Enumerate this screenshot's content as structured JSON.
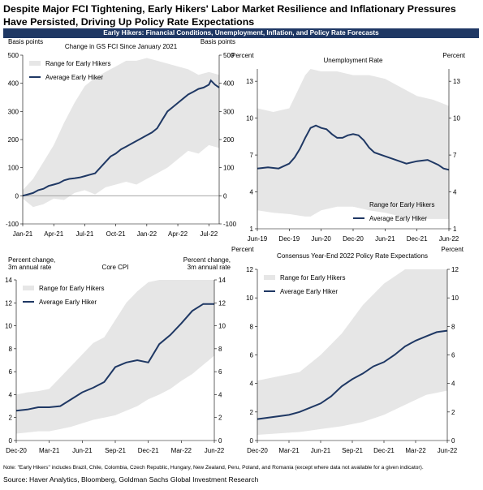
{
  "title": "Despite Major FCI Tightening, Early Hikers' Labor Market Resilience and Inflationary Pressures Have Persisted, Driving Up Policy Rate Expectations",
  "banner": "Early Hikers: Financial Conditions, Unemployment, Inflation, and Policy Rate Forecasts",
  "footnote": "Note: \"Early Hikers\" includes Brazil, Chile, Colombia, Czech Republic, Hungary, New Zealand, Peru, Poland, and Romania (except where data not available for a given indicator).",
  "source": "Source: Haver Analytics, Bloomberg, Goldman Sachs Global Investment Research",
  "colors": {
    "band": "#e6e6e6",
    "line": "#1f3864",
    "banner": "#1f3864"
  },
  "chart_data": [
    {
      "id": "fci",
      "type": "area",
      "title": "Change in GS FCI Since January 2021",
      "ylabel_left": "Basis points",
      "ylabel_right": "Basis points",
      "ylim": [
        -100,
        500
      ],
      "yticks": [
        -100,
        0,
        100,
        200,
        300,
        400,
        500
      ],
      "xticks": [
        "Jan-21",
        "Apr-21",
        "Jul-21",
        "Oct-21",
        "Jan-22",
        "Apr-22",
        "Jul-22"
      ],
      "x_start": "2021-01",
      "legend": "top-left",
      "series": [
        {
          "name": "Range for Early Hikers",
          "kind": "band",
          "x": [
            0,
            1,
            2,
            3,
            4,
            5,
            6,
            7,
            8,
            9,
            10,
            11,
            12,
            13,
            14,
            15,
            16,
            17,
            18,
            19
          ],
          "low": [
            -10,
            -40,
            -30,
            -10,
            -15,
            10,
            20,
            5,
            30,
            40,
            50,
            40,
            60,
            80,
            100,
            130,
            160,
            150,
            180,
            170
          ],
          "high": [
            20,
            60,
            120,
            180,
            260,
            330,
            390,
            420,
            440,
            460,
            480,
            480,
            490,
            480,
            470,
            460,
            450,
            430,
            440,
            430
          ]
        },
        {
          "name": "Average Early Hiker",
          "kind": "line",
          "x": [
            0,
            0.5,
            1,
            1.5,
            2,
            2.5,
            3,
            3.5,
            4,
            4.5,
            5,
            5.5,
            6,
            6.5,
            7,
            7.5,
            8,
            8.5,
            9,
            9.5,
            10,
            10.5,
            11,
            11.5,
            12,
            12.5,
            13,
            13.5,
            14,
            14.5,
            15,
            15.5,
            16,
            16.5,
            17,
            17.5,
            18,
            18.2,
            18.6,
            19
          ],
          "values": [
            0,
            5,
            10,
            20,
            25,
            35,
            40,
            45,
            55,
            60,
            62,
            65,
            70,
            75,
            80,
            100,
            120,
            140,
            150,
            165,
            175,
            185,
            195,
            205,
            215,
            225,
            240,
            270,
            300,
            315,
            330,
            345,
            360,
            370,
            380,
            385,
            395,
            410,
            395,
            385
          ]
        }
      ]
    },
    {
      "id": "unemployment",
      "type": "area",
      "title": "Unemployment Rate",
      "ylabel_left": "Percent",
      "ylabel_right": "Percent",
      "ylim": [
        1,
        14
      ],
      "yticks": [
        1,
        4,
        7,
        10,
        13
      ],
      "xticks": [
        "Jun-19",
        "Dec-19",
        "Jun-20",
        "Dec-20",
        "Jun-21",
        "Dec-21",
        "Jun-22"
      ],
      "x_start": "2019-06",
      "legend": "bottom-right",
      "series": [
        {
          "name": "Range for Early Hikers",
          "kind": "band",
          "x": [
            0,
            3,
            6,
            9,
            10,
            12,
            15,
            18,
            21,
            24,
            27,
            30,
            33,
            36
          ],
          "low": [
            2.5,
            2.3,
            2.2,
            2.0,
            2.0,
            2.5,
            2.8,
            2.8,
            2.5,
            2.3,
            2.0,
            1.8,
            1.8,
            1.8
          ],
          "high": [
            10.8,
            10.5,
            10.8,
            13.5,
            14.0,
            13.8,
            13.8,
            13.5,
            13.5,
            13.2,
            12.5,
            11.8,
            11.5,
            11.0
          ]
        },
        {
          "name": "Average Early Hiker",
          "kind": "line",
          "x": [
            0,
            2,
            4,
            6,
            7,
            8,
            9,
            10,
            11,
            12,
            13,
            14,
            15,
            16,
            17,
            18,
            19,
            20,
            21,
            22,
            24,
            26,
            28,
            30,
            32,
            34,
            35,
            36
          ],
          "values": [
            5.9,
            6.0,
            5.9,
            6.3,
            6.8,
            7.5,
            8.4,
            9.2,
            9.4,
            9.2,
            9.1,
            8.7,
            8.4,
            8.4,
            8.6,
            8.7,
            8.6,
            8.2,
            7.6,
            7.2,
            6.9,
            6.6,
            6.3,
            6.5,
            6.6,
            6.2,
            5.9,
            5.8
          ]
        }
      ]
    },
    {
      "id": "cpi",
      "type": "area",
      "title": "Core CPI",
      "ylabel_left": "Percent change,\n3m annual rate",
      "ylabel_right": "Percent change,\n3m annual rate",
      "ylim": [
        0,
        14
      ],
      "yticks": [
        0,
        2,
        4,
        6,
        8,
        10,
        12,
        14
      ],
      "xticks": [
        "Dec-20",
        "Mar-21",
        "Jun-21",
        "Sep-21",
        "Dec-21",
        "Mar-22",
        "Jun-22"
      ],
      "x_start": "2020-12",
      "legend": "top-left",
      "series": [
        {
          "name": "Range for Early Hikers",
          "kind": "band",
          "x": [
            0,
            1,
            2,
            3,
            4,
            5,
            6,
            7,
            8,
            9,
            10,
            11,
            12,
            13,
            14,
            15,
            16,
            17,
            18
          ],
          "low": [
            0.6,
            0.7,
            0.8,
            0.8,
            1.0,
            1.2,
            1.5,
            1.8,
            2.0,
            2.2,
            2.6,
            3.0,
            3.6,
            4.0,
            4.5,
            5.2,
            5.8,
            6.6,
            7.4
          ],
          "high": [
            4.0,
            4.2,
            4.3,
            4.5,
            5.5,
            6.5,
            7.5,
            8.5,
            9.0,
            10.5,
            12.0,
            13.0,
            13.8,
            14.0,
            14.0,
            14.0,
            14.0,
            14.0,
            14.0
          ]
        },
        {
          "name": "Average Early Hiker",
          "kind": "line",
          "x": [
            0,
            1,
            2,
            3,
            4,
            5,
            6,
            7,
            8,
            9,
            10,
            11,
            12,
            13,
            14,
            15,
            16,
            17,
            18
          ],
          "values": [
            2.6,
            2.7,
            2.9,
            2.9,
            3.0,
            3.6,
            4.2,
            4.6,
            5.1,
            6.4,
            6.8,
            7.0,
            6.8,
            8.4,
            9.2,
            10.2,
            11.3,
            11.9,
            11.9
          ]
        }
      ]
    },
    {
      "id": "policy",
      "type": "area",
      "title": "Consensus Year-End 2022 Policy Rate Expectations",
      "ylabel_left": "Percent",
      "ylabel_right": "Percent",
      "ylim": [
        0,
        12
      ],
      "yticks": [
        0,
        2,
        4,
        6,
        8,
        10,
        12
      ],
      "xticks": [
        "Dec-20",
        "Mar-21",
        "Jun-21",
        "Sep-21",
        "Dec-21",
        "Mar-22",
        "Jun-22"
      ],
      "x_start": "2020-12",
      "legend": "top-left",
      "series": [
        {
          "name": "Range for Early Hikers",
          "kind": "band",
          "x": [
            0,
            2,
            4,
            6,
            8,
            10,
            12,
            14,
            16,
            18
          ],
          "low": [
            0.4,
            0.5,
            0.6,
            0.8,
            1.0,
            1.3,
            1.8,
            2.5,
            3.2,
            3.5
          ],
          "high": [
            4.2,
            4.5,
            4.8,
            6.0,
            7.5,
            9.5,
            11.0,
            12.0,
            12.0,
            12.0
          ]
        },
        {
          "name": "Average Early Hiker",
          "kind": "line",
          "x": [
            0,
            1,
            2,
            3,
            4,
            5,
            6,
            7,
            8,
            9,
            10,
            11,
            12,
            13,
            14,
            15,
            16,
            17,
            18
          ],
          "values": [
            1.5,
            1.6,
            1.7,
            1.8,
            2.0,
            2.3,
            2.6,
            3.1,
            3.8,
            4.3,
            4.7,
            5.2,
            5.5,
            6.0,
            6.6,
            7.0,
            7.3,
            7.6,
            7.7
          ]
        }
      ]
    }
  ]
}
